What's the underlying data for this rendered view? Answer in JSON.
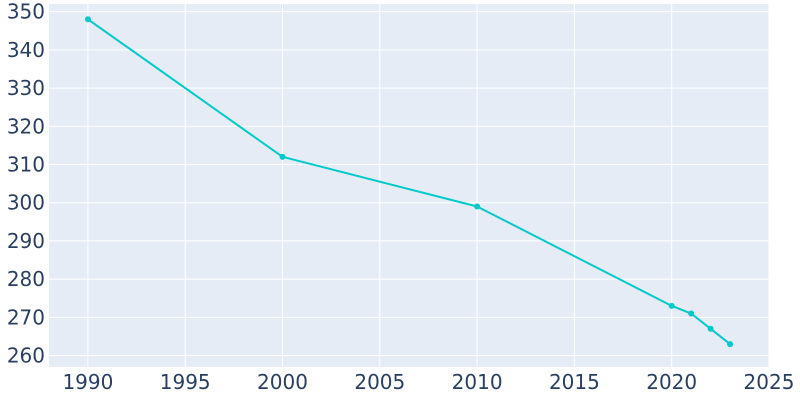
{
  "chart_data": {
    "type": "line",
    "title": "",
    "xlabel": "",
    "ylabel": "",
    "xlim": [
      1988,
      2025
    ],
    "ylim": [
      257,
      352
    ],
    "x_ticks": [
      1990,
      1995,
      2000,
      2005,
      2010,
      2015,
      2020,
      2025
    ],
    "y_ticks": [
      260,
      270,
      280,
      290,
      300,
      310,
      320,
      330,
      340,
      350
    ],
    "grid": true,
    "legend": "none",
    "series": [
      {
        "x": [
          1990,
          2000,
          2010,
          2020,
          2021,
          2022,
          2023
        ],
        "y": [
          348,
          312,
          299,
          273,
          271,
          267,
          263
        ],
        "color": "#00c9c9"
      }
    ],
    "colors": {
      "plot_background": "#e5ecf6",
      "gridline": "#ffffff",
      "tick_text": "#2a3f5f"
    }
  }
}
